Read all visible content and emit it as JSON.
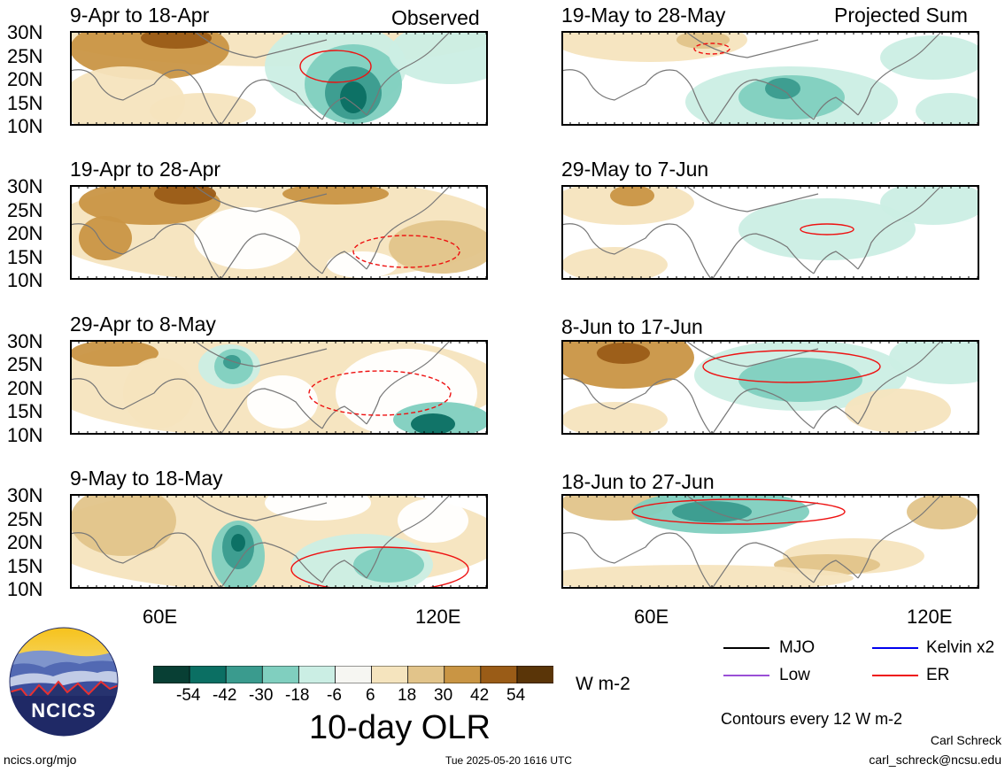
{
  "headers": {
    "observed": "Observed",
    "projected": "Projected Sum"
  },
  "panels": [
    {
      "date": "9-Apr to 18-Apr"
    },
    {
      "date": "19-Apr to 28-Apr"
    },
    {
      "date": "29-Apr to 8-May"
    },
    {
      "date": "9-May to 18-May"
    },
    {
      "date": "19-May to 28-May"
    },
    {
      "date": "29-May to 7-Jun"
    },
    {
      "date": "8-Jun to 17-Jun"
    },
    {
      "date": "18-Jun to 27-Jun"
    }
  ],
  "lat_labels": [
    "30N",
    "25N",
    "20N",
    "15N",
    "10N"
  ],
  "lon_labels": [
    "60E",
    "120E"
  ],
  "colorbar": {
    "ticks": [
      "-54",
      "-42",
      "-30",
      "-18",
      "-6",
      "6",
      "18",
      "30",
      "42",
      "54"
    ],
    "colors": [
      "#083f34",
      "#0b6f63",
      "#3a9b8e",
      "#80cfbf",
      "#cbeee4",
      "#f6f6f2",
      "#f5e4be",
      "#e2c48a",
      "#c99544",
      "#9a5c17",
      "#5a3508"
    ],
    "units": "W m-2",
    "title": "10-day OLR"
  },
  "legend": {
    "items": [
      {
        "label": "MJO",
        "color": "#000000"
      },
      {
        "label": "Kelvin x2",
        "color": "#0000ee"
      },
      {
        "label": "Low",
        "color": "#9a4fd6"
      },
      {
        "label": "ER",
        "color": "#ee1111"
      }
    ],
    "contours": "Contours every 12 W m-2"
  },
  "logo": {
    "text": "NCICS"
  },
  "footer": {
    "url": "ncics.org/mjo",
    "timestamp": "Tue 2025-05-20 1616 UTC",
    "author": "Carl Schreck",
    "email": "carl_schreck@ncsu.edu"
  }
}
